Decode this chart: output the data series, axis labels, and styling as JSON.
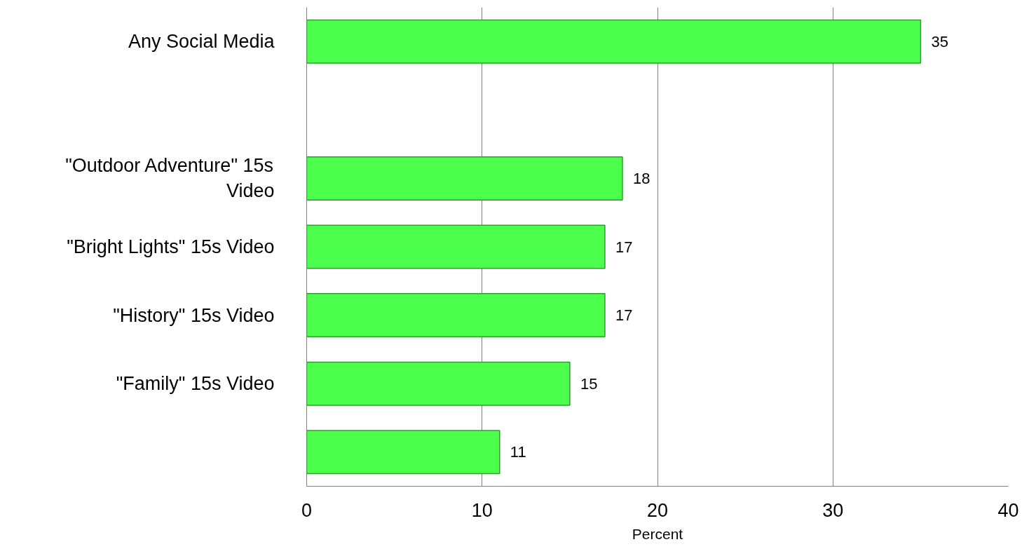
{
  "chart_data": {
    "type": "bar",
    "orientation": "horizontal",
    "xlabel": "Percent",
    "categories": [
      "Any Social Media",
      null,
      "\"Outdoor Adventure\" 15s Video",
      "\"Bright Lights\" 15s Video",
      "\"History\" 15s Video",
      "\"Family\" 15s Video",
      null
    ],
    "values": [
      35,
      null,
      18,
      17,
      17,
      15,
      11
    ],
    "color": "#4dff4d",
    "xlim": [
      0,
      40
    ],
    "xticks": [
      0,
      10,
      20,
      30,
      40
    ],
    "grid": "x",
    "data_labels": true
  }
}
